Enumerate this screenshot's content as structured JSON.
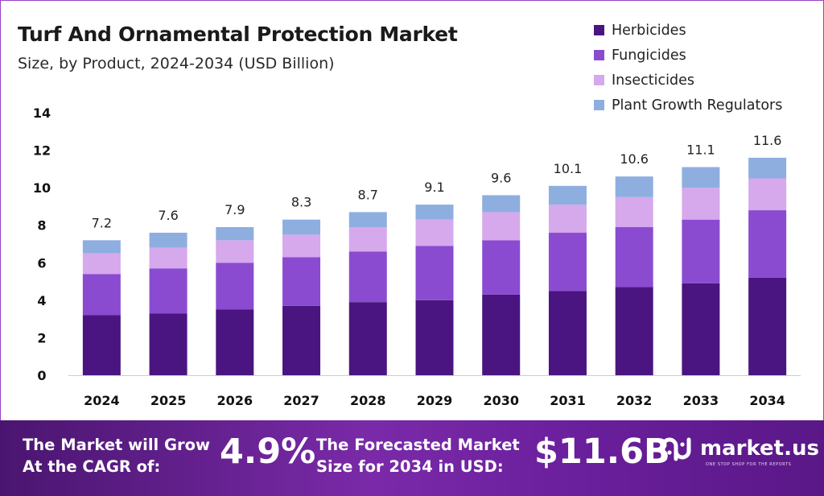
{
  "chart_data": {
    "type": "bar",
    "stacked": true,
    "title": "Turf And Ornamental Protection Market",
    "subtitle": "Size, by Product, 2024-2034 (USD Billion)",
    "xlabel": "",
    "ylabel": "",
    "ylim": [
      0,
      14
    ],
    "yticks": [
      0,
      2,
      4,
      6,
      8,
      10,
      12,
      14
    ],
    "grid": false,
    "legend_position": "top-right",
    "categories": [
      "2024",
      "2025",
      "2026",
      "2027",
      "2028",
      "2029",
      "2030",
      "2031",
      "2032",
      "2033",
      "2034"
    ],
    "series": [
      {
        "name": "Herbicides",
        "color": "#4a1580",
        "values": [
          3.2,
          3.3,
          3.5,
          3.7,
          3.9,
          4.0,
          4.3,
          4.5,
          4.7,
          4.9,
          5.2
        ]
      },
      {
        "name": "Fungicides",
        "color": "#8a4bd0",
        "values": [
          2.2,
          2.4,
          2.5,
          2.6,
          2.7,
          2.9,
          2.9,
          3.1,
          3.2,
          3.4,
          3.6
        ]
      },
      {
        "name": "Insecticides",
        "color": "#d6a8ec",
        "values": [
          1.1,
          1.1,
          1.2,
          1.2,
          1.3,
          1.4,
          1.5,
          1.5,
          1.6,
          1.7,
          1.7
        ]
      },
      {
        "name": "Plant Growth Regulators",
        "color": "#8eaee0",
        "values": [
          0.7,
          0.8,
          0.7,
          0.8,
          0.8,
          0.8,
          0.9,
          1.0,
          1.1,
          1.1,
          1.1
        ]
      }
    ],
    "totals": [
      7.2,
      7.6,
      7.9,
      8.3,
      8.7,
      9.1,
      9.6,
      10.1,
      10.6,
      11.1,
      11.6
    ],
    "total_labels": [
      "7.2",
      "7.6",
      "7.9",
      "8.3",
      "8.7",
      "9.1",
      "9.6",
      "10.1",
      "10.6",
      "11.1",
      "11.6"
    ]
  },
  "footer": {
    "cagr_text_line1": "The Market will Grow",
    "cagr_text_line2": "At the CAGR of:",
    "cagr_value": "4.9%",
    "forecast_text_line1": "The Forecasted Market",
    "forecast_text_line2": "Size for 2034 in USD:",
    "forecast_value": "$11.6B",
    "brand_name": "market.us",
    "brand_tagline": "ONE STOP SHOP FOR THE REPORTS",
    "brand_icon": "market-us-logo-icon"
  },
  "colors": {
    "accent": "#7a2aa8",
    "axis_text": "#111111"
  }
}
